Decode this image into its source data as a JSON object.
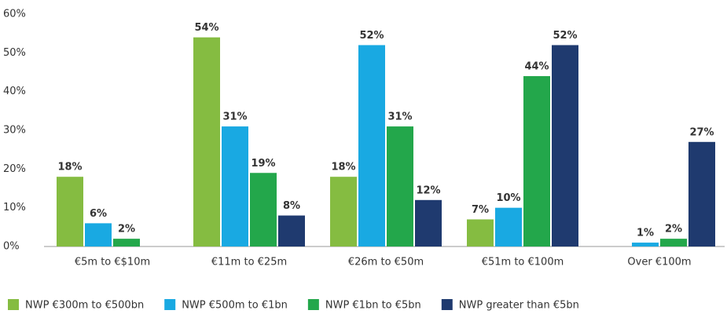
{
  "chart_data": {
    "type": "bar",
    "categories": [
      "€5m to €$10m",
      "€11m to €25m",
      "€26m to €50m",
      "€51m to €100m",
      "Over €100m"
    ],
    "series": [
      {
        "name": "NWP €300m to €500bn",
        "color": "#85bc41",
        "values": [
          18,
          54,
          18,
          7,
          null
        ],
        "value_labels": [
          "18%",
          "54%",
          "18%",
          "7%",
          null
        ]
      },
      {
        "name": "NWP €500m to €1bn",
        "color": "#19a9e2",
        "values": [
          6,
          31,
          52,
          10,
          1
        ],
        "value_labels": [
          "6%",
          "31%",
          "52%",
          "10%",
          "1%"
        ]
      },
      {
        "name": "NWP €1bn to €5bn",
        "color": "#23a74b",
        "values": [
          2,
          19,
          31,
          44,
          2
        ],
        "value_labels": [
          "2%",
          "19%",
          "31%",
          "44%",
          "2%"
        ]
      },
      {
        "name": "NWP greater than €5bn",
        "color": "#1f3a6f",
        "values": [
          null,
          8,
          12,
          52,
          27
        ],
        "value_labels": [
          null,
          "8%",
          "12%",
          "52%",
          "27%"
        ]
      }
    ],
    "ylim": [
      0,
      60
    ],
    "yticks": [
      {
        "value": 0,
        "label": "0%"
      },
      {
        "value": 10,
        "label": "10%"
      },
      {
        "value": 20,
        "label": "20%"
      },
      {
        "value": 30,
        "label": "30%"
      },
      {
        "value": 40,
        "label": "40%"
      },
      {
        "value": 50,
        "label": "50%"
      },
      {
        "value": 60,
        "label": "60%"
      }
    ],
    "grid": false
  }
}
